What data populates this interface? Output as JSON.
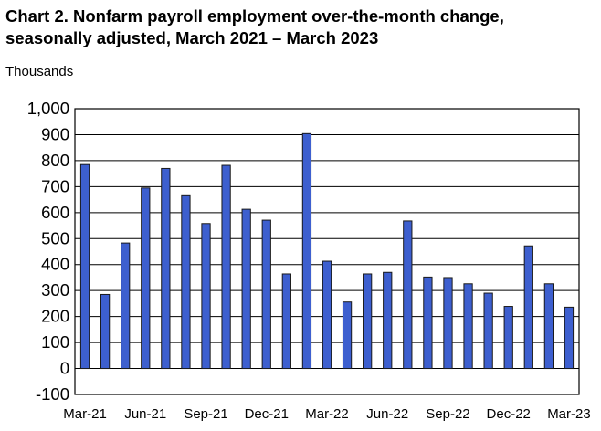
{
  "title_line1": "Chart 2. Nonfarm payroll employment over-the-month change,",
  "title_line2": "seasonally adjusted, March 2021 – March 2023",
  "chart_data": {
    "type": "bar",
    "title": "Chart 2. Nonfarm payroll employment over-the-month change, seasonally adjusted, March 2021 – March 2023",
    "ylabel": "Thousands",
    "ylim": [
      -100,
      1000
    ],
    "ytick_step": 100,
    "grid": true,
    "bar_color": "#3d5fcf",
    "categories": [
      "Mar-21",
      "Apr-21",
      "May-21",
      "Jun-21",
      "Jul-21",
      "Aug-21",
      "Sep-21",
      "Oct-21",
      "Nov-21",
      "Dec-21",
      "Jan-22",
      "Feb-22",
      "Mar-22",
      "Apr-22",
      "May-22",
      "Jun-22",
      "Jul-22",
      "Aug-22",
      "Sep-22",
      "Oct-22",
      "Nov-22",
      "Dec-22",
      "Jan-23",
      "Feb-23",
      "Mar-23"
    ],
    "xtick_labels": [
      "Mar-21",
      "Jun-21",
      "Sep-21",
      "Dec-21",
      "Mar-22",
      "Jun-22",
      "Sep-22",
      "Dec-22",
      "Mar-23"
    ],
    "values": [
      785,
      285,
      483,
      695,
      770,
      665,
      558,
      782,
      613,
      571,
      364,
      904,
      413,
      256,
      364,
      370,
      568,
      352,
      350,
      326,
      290,
      239,
      472,
      326,
      236
    ]
  }
}
